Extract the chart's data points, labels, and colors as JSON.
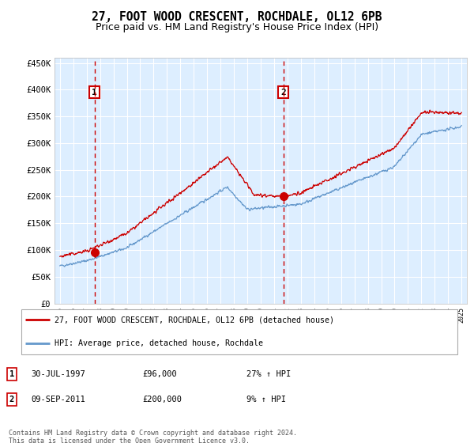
{
  "title": "27, FOOT WOOD CRESCENT, ROCHDALE, OL12 6PB",
  "subtitle": "Price paid vs. HM Land Registry's House Price Index (HPI)",
  "title_fontsize": 10.5,
  "subtitle_fontsize": 9,
  "ylim": [
    0,
    460000
  ],
  "yticks": [
    0,
    50000,
    100000,
    150000,
    200000,
    250000,
    300000,
    350000,
    400000,
    450000
  ],
  "ytick_labels": [
    "£0",
    "£50K",
    "£100K",
    "£150K",
    "£200K",
    "£250K",
    "£300K",
    "£350K",
    "£400K",
    "£450K"
  ],
  "xtick_years": [
    1995,
    1996,
    1997,
    1998,
    1999,
    2000,
    2001,
    2002,
    2003,
    2004,
    2005,
    2006,
    2007,
    2008,
    2009,
    2010,
    2011,
    2012,
    2013,
    2014,
    2015,
    2016,
    2017,
    2018,
    2019,
    2020,
    2021,
    2022,
    2023,
    2024,
    2025
  ],
  "sale1_year": 1997.58,
  "sale1_price": 96000,
  "sale2_year": 2011.69,
  "sale2_price": 200000,
  "sale1_date": "30-JUL-1997",
  "sale2_date": "09-SEP-2011",
  "property_line_color": "#cc0000",
  "hpi_line_color": "#6699cc",
  "marker_color": "#cc0000",
  "vline_color": "#cc0000",
  "box_edge_color": "#cc0000",
  "bg_color": "#ddeeff",
  "grid_color": "#ffffff",
  "legend_label1": "27, FOOT WOOD CRESCENT, ROCHDALE, OL12 6PB (detached house)",
  "legend_label2": "HPI: Average price, detached house, Rochdale",
  "footer": "Contains HM Land Registry data © Crown copyright and database right 2024.\nThis data is licensed under the Open Government Licence v3.0."
}
